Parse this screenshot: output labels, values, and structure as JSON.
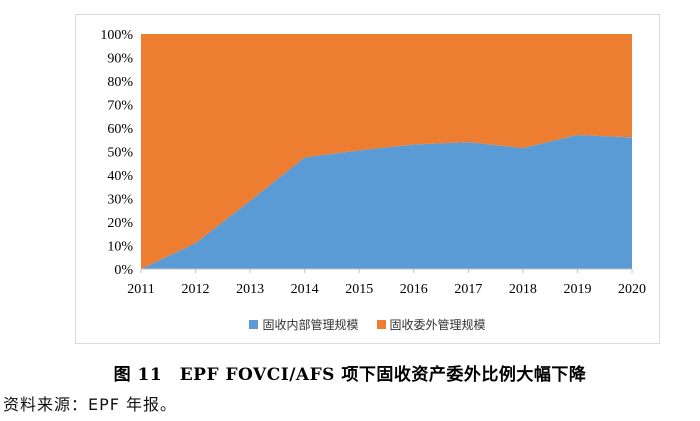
{
  "chart_data": {
    "type": "area",
    "stacked": true,
    "x": [
      "2011",
      "2012",
      "2013",
      "2014",
      "2015",
      "2016",
      "2017",
      "2018",
      "2019",
      "2020"
    ],
    "series": [
      {
        "name": "固收内部管理规模",
        "color": "#5b9bd5",
        "values": [
          0,
          11,
          29,
          47.5,
          50.5,
          53,
          54,
          51.5,
          57,
          56
        ]
      },
      {
        "name": "固收委外管理规模",
        "color": "#ed7d31",
        "values": [
          100,
          89,
          71,
          52.5,
          49.5,
          47,
          46,
          48.5,
          43,
          44
        ]
      }
    ],
    "y_ticks": [
      "0%",
      "10%",
      "20%",
      "30%",
      "40%",
      "50%",
      "60%",
      "70%",
      "80%",
      "90%",
      "100%"
    ],
    "ylim": [
      0,
      100
    ],
    "grid": false,
    "legend_position": "bottom"
  },
  "caption": "图 11　EPF FOVCI/AFS 项下固收资产委外比例大幅下降",
  "source_note": "资料来源：EPF 年报。"
}
